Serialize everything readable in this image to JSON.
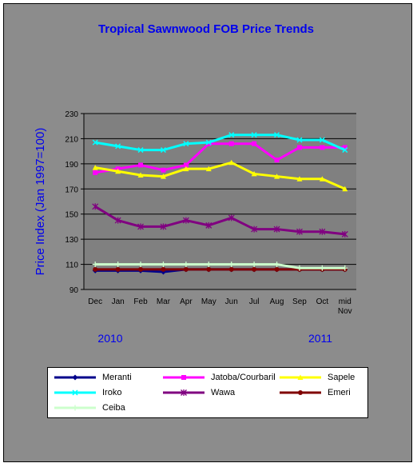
{
  "chart_data": {
    "type": "line",
    "title": "Tropical Sawnwood FOB Price Trends",
    "ylabel": "Price Index  (Jan 1997=100)",
    "xlabel": "",
    "ylim": [
      90,
      230
    ],
    "yticks": [
      90,
      110,
      130,
      150,
      170,
      190,
      210,
      230
    ],
    "categories": [
      "Dec",
      "Jan",
      "Feb",
      "Mar",
      "Apr",
      "May",
      "Jun",
      "Jul",
      "Aug",
      "Sep",
      "Oct",
      "mid Nov"
    ],
    "category_lines": [
      [
        "Dec"
      ],
      [
        "Jan"
      ],
      [
        "Feb"
      ],
      [
        "Mar"
      ],
      [
        "Apr"
      ],
      [
        "May"
      ],
      [
        "Jun"
      ],
      [
        "Jul"
      ],
      [
        "Aug"
      ],
      [
        "Sep"
      ],
      [
        "Oct"
      ],
      [
        "mid",
        "Nov"
      ]
    ],
    "year_labels": [
      "2010",
      "2011"
    ],
    "grid": true,
    "legend_position": "bottom",
    "series": [
      {
        "name": "Meranti",
        "color": "#00008b",
        "marker": "diamond",
        "values": [
          105,
          105,
          105,
          104,
          106,
          106,
          106,
          106,
          106,
          106,
          106,
          106
        ]
      },
      {
        "name": "Jatoba/Courbaril",
        "color": "#ff00ff",
        "marker": "square",
        "values": [
          183,
          186,
          189,
          185,
          189,
          206,
          206,
          206,
          193,
          203,
          203,
          203
        ]
      },
      {
        "name": "Sapele",
        "color": "#ffff00",
        "marker": "triangle",
        "values": [
          187,
          184,
          181,
          180,
          186,
          186,
          191,
          182,
          180,
          178,
          178,
          170
        ]
      },
      {
        "name": "Iroko",
        "color": "#00ffff",
        "marker": "x",
        "values": [
          207,
          204,
          201,
          201,
          206,
          207,
          213,
          213,
          213,
          209,
          209,
          201
        ]
      },
      {
        "name": "Wawa",
        "color": "#800080",
        "marker": "star",
        "values": [
          156,
          145,
          140,
          140,
          145,
          141,
          147,
          138,
          138,
          136,
          136,
          134
        ]
      },
      {
        "name": "Emeri",
        "color": "#800000",
        "marker": "circle",
        "values": [
          106,
          106,
          106,
          106,
          106,
          106,
          106,
          106,
          106,
          106,
          106,
          106
        ]
      },
      {
        "name": "Ceiba",
        "color": "#ccffcc",
        "marker": "plus",
        "values": [
          110,
          110,
          110,
          110,
          110,
          110,
          110,
          110,
          110,
          107,
          107,
          107
        ]
      }
    ]
  }
}
